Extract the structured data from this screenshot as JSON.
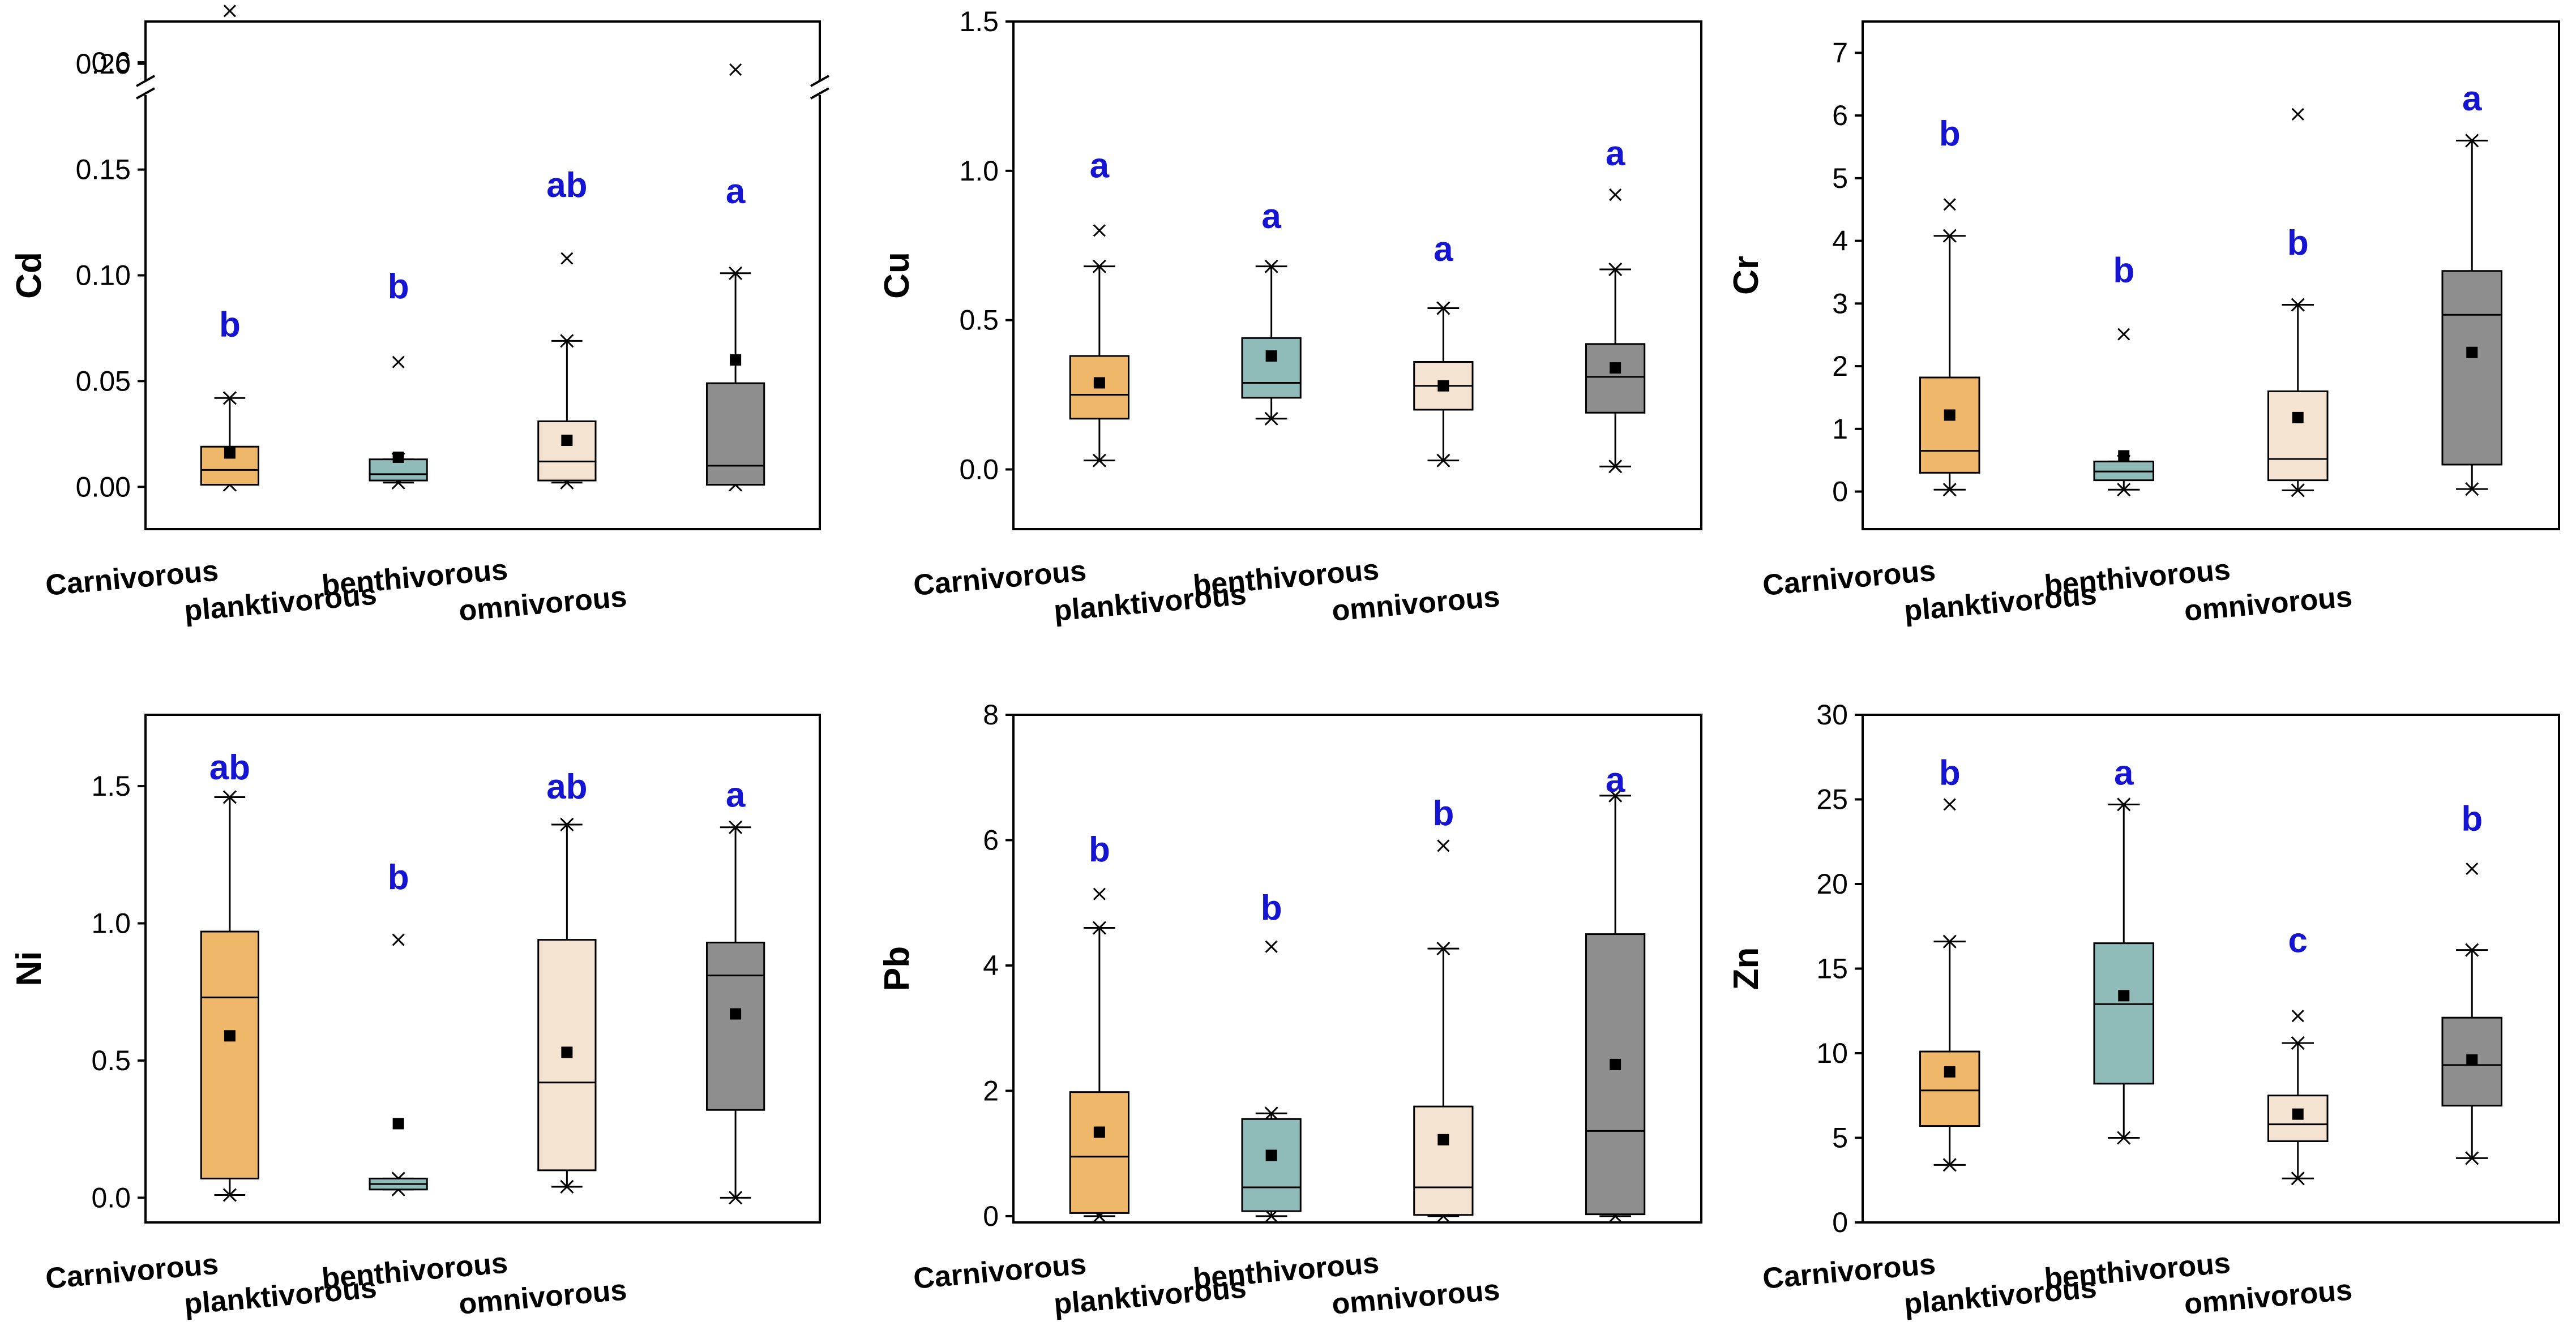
{
  "chart_data": [
    {
      "type": "box",
      "ylabel": "Cd",
      "categories": [
        "Carnivorous",
        "planktivorous",
        "benthivorous",
        "omnivorous"
      ],
      "ylim": [
        -0.02,
        0.22
      ],
      "yticks": [
        0.0,
        0.05,
        0.1,
        0.15,
        0.2
      ],
      "ytick_labels": [
        "0.00",
        "0.05",
        "0.10",
        "0.15",
        "0.20"
      ],
      "broken_axis": {
        "label": "0.6",
        "value": 0.6
      },
      "boxes": [
        {
          "q1": 0.001,
          "median": 0.008,
          "q3": 0.019,
          "whisker_low": 0.001,
          "whisker_high": 0.042,
          "mean": 0.016,
          "outliers": [
            0.225
          ],
          "outliers_broken": []
        },
        {
          "q1": 0.003,
          "median": 0.006,
          "q3": 0.013,
          "whisker_low": 0.002,
          "whisker_high": 0.013,
          "mean": 0.014,
          "outliers": [
            0.059
          ],
          "outliers_broken": []
        },
        {
          "q1": 0.003,
          "median": 0.012,
          "q3": 0.031,
          "whisker_low": 0.002,
          "whisker_high": 0.069,
          "mean": 0.022,
          "outliers": [
            0.108
          ],
          "outliers_broken": []
        },
        {
          "q1": 0.001,
          "median": 0.01,
          "q3": 0.049,
          "whisker_low": 0.001,
          "whisker_high": 0.101,
          "mean": 0.06,
          "outliers": [],
          "outliers_broken": [
            0.6
          ]
        }
      ],
      "significance": [
        "b",
        "b",
        "ab",
        "a"
      ],
      "significance_values": [
        0.077,
        0.095,
        0.143,
        0.14
      ]
    },
    {
      "type": "box",
      "ylabel": "Cu",
      "categories": [
        "Carnivorous",
        "planktivorous",
        "benthivorous",
        "omnivorous"
      ],
      "ylim": [
        -0.2,
        1.5
      ],
      "yticks": [
        0.0,
        0.5,
        1.0,
        1.5
      ],
      "ytick_labels": [
        "0.0",
        "0.5",
        "1.0",
        "1.5"
      ],
      "boxes": [
        {
          "q1": 0.17,
          "median": 0.25,
          "q3": 0.38,
          "whisker_low": 0.03,
          "whisker_high": 0.68,
          "mean": 0.29,
          "outliers": [
            0.8
          ]
        },
        {
          "q1": 0.24,
          "median": 0.29,
          "q3": 0.44,
          "whisker_low": 0.17,
          "whisker_high": 0.68,
          "mean": 0.38,
          "outliers": []
        },
        {
          "q1": 0.2,
          "median": 0.28,
          "q3": 0.36,
          "whisker_low": 0.03,
          "whisker_high": 0.54,
          "mean": 0.28,
          "outliers": []
        },
        {
          "q1": 0.19,
          "median": 0.31,
          "q3": 0.42,
          "whisker_low": 0.01,
          "whisker_high": 0.67,
          "mean": 0.34,
          "outliers": [
            0.92
          ]
        }
      ],
      "significance": [
        "a",
        "a",
        "a",
        "a"
      ],
      "significance_values": [
        1.02,
        0.85,
        0.74,
        1.06
      ]
    },
    {
      "type": "box",
      "ylabel": "Cr",
      "categories": [
        "Carnivorous",
        "planktivorous",
        "benthivorous",
        "omnivorous"
      ],
      "ylim": [
        -0.6,
        7.5
      ],
      "yticks": [
        0,
        1,
        2,
        3,
        4,
        5,
        6,
        7
      ],
      "ytick_labels": [
        "0",
        "1",
        "2",
        "3",
        "4",
        "5",
        "6",
        "7"
      ],
      "boxes": [
        {
          "q1": 0.3,
          "median": 0.65,
          "q3": 1.82,
          "whisker_low": 0.03,
          "whisker_high": 4.08,
          "mean": 1.22,
          "outliers": [
            4.58
          ]
        },
        {
          "q1": 0.18,
          "median": 0.32,
          "q3": 0.48,
          "whisker_low": 0.03,
          "whisker_high": 0.48,
          "mean": 0.57,
          "outliers": [
            2.51
          ]
        },
        {
          "q1": 0.18,
          "median": 0.52,
          "q3": 1.6,
          "whisker_low": 0.02,
          "whisker_high": 2.98,
          "mean": 1.18,
          "outliers": [
            6.02
          ]
        },
        {
          "q1": 0.43,
          "median": 2.82,
          "q3": 3.52,
          "whisker_low": 0.04,
          "whisker_high": 5.6,
          "mean": 2.22,
          "outliers": []
        }
      ],
      "significance": [
        "b",
        "b",
        "b",
        "a"
      ],
      "significance_values": [
        5.72,
        3.54,
        3.98,
        6.28
      ]
    },
    {
      "type": "box",
      "ylabel": "Ni",
      "categories": [
        "Carnivorous",
        "planktivorous",
        "benthivorous",
        "omnivorous"
      ],
      "ylim": [
        -0.09,
        1.76
      ],
      "yticks": [
        0.0,
        0.5,
        1.0,
        1.5
      ],
      "ytick_labels": [
        "0.0",
        "0.5",
        "1.0",
        "1.5"
      ],
      "boxes": [
        {
          "q1": 0.07,
          "median": 0.73,
          "q3": 0.97,
          "whisker_low": 0.01,
          "whisker_high": 1.46,
          "mean": 0.59,
          "outliers": []
        },
        {
          "q1": 0.03,
          "median": 0.05,
          "q3": 0.07,
          "whisker_low": 0.03,
          "whisker_high": 0.07,
          "mean": 0.27,
          "outliers": [
            0.94
          ]
        },
        {
          "q1": 0.1,
          "median": 0.42,
          "q3": 0.94,
          "whisker_low": 0.04,
          "whisker_high": 1.36,
          "mean": 0.53,
          "outliers": []
        },
        {
          "q1": 0.32,
          "median": 0.81,
          "q3": 0.93,
          "whisker_low": 0.0,
          "whisker_high": 1.35,
          "mean": 0.67,
          "outliers": []
        }
      ],
      "significance": [
        "ab",
        "b",
        "ab",
        "a"
      ],
      "significance_values": [
        1.57,
        1.17,
        1.5,
        1.47
      ]
    },
    {
      "type": "box",
      "ylabel": "Pb",
      "categories": [
        "Carnivorous",
        "planktivorous",
        "benthivorous",
        "omnivorous"
      ],
      "ylim": [
        -0.1,
        8.0
      ],
      "yticks": [
        0,
        2,
        4,
        6,
        8
      ],
      "ytick_labels": [
        "0",
        "2",
        "4",
        "6",
        "8"
      ],
      "boxes": [
        {
          "q1": 0.05,
          "median": 0.95,
          "q3": 1.98,
          "whisker_low": 0.0,
          "whisker_high": 4.6,
          "mean": 1.34,
          "outliers": [
            5.14
          ]
        },
        {
          "q1": 0.08,
          "median": 0.46,
          "q3": 1.55,
          "whisker_low": 0.0,
          "whisker_high": 1.64,
          "mean": 0.97,
          "outliers": [
            4.3
          ]
        },
        {
          "q1": 0.02,
          "median": 0.46,
          "q3": 1.75,
          "whisker_low": 0.0,
          "whisker_high": 4.27,
          "mean": 1.22,
          "outliers": [
            5.91
          ]
        },
        {
          "q1": 0.03,
          "median": 1.36,
          "q3": 4.5,
          "whisker_low": 0.0,
          "whisker_high": 6.71,
          "mean": 2.42,
          "outliers": []
        }
      ],
      "significance": [
        "b",
        "b",
        "b",
        "a"
      ],
      "significance_values": [
        5.86,
        4.93,
        6.44,
        6.97
      ]
    },
    {
      "type": "box",
      "ylabel": "Zn",
      "categories": [
        "Carnivorous",
        "planktivorous",
        "benthivorous",
        "omnivorous"
      ],
      "ylim": [
        0,
        30
      ],
      "yticks": [
        0,
        5,
        10,
        15,
        20,
        25,
        30
      ],
      "ytick_labels": [
        "0",
        "5",
        "10",
        "15",
        "20",
        "25",
        "30"
      ],
      "boxes": [
        {
          "q1": 5.7,
          "median": 7.8,
          "q3": 10.1,
          "whisker_low": 3.4,
          "whisker_high": 16.6,
          "mean": 8.9,
          "outliers": [
            24.7
          ]
        },
        {
          "q1": 8.2,
          "median": 12.9,
          "q3": 16.5,
          "whisker_low": 5.0,
          "whisker_high": 24.7,
          "mean": 13.4,
          "outliers": []
        },
        {
          "q1": 4.8,
          "median": 5.8,
          "q3": 7.5,
          "whisker_low": 2.6,
          "whisker_high": 10.6,
          "mean": 6.4,
          "outliers": [
            12.2
          ]
        },
        {
          "q1": 6.9,
          "median": 9.3,
          "q3": 12.1,
          "whisker_low": 3.8,
          "whisker_high": 16.1,
          "mean": 9.6,
          "outliers": [
            20.9
          ]
        }
      ],
      "significance": [
        "b",
        "a",
        "c",
        "b"
      ],
      "significance_values": [
        26.6,
        26.6,
        16.7,
        23.9
      ]
    }
  ],
  "box_colors": [
    "#efb76a",
    "#8fbcb9",
    "#f4e3d1",
    "#8e8e8e"
  ],
  "significance_color": "#1414d2"
}
